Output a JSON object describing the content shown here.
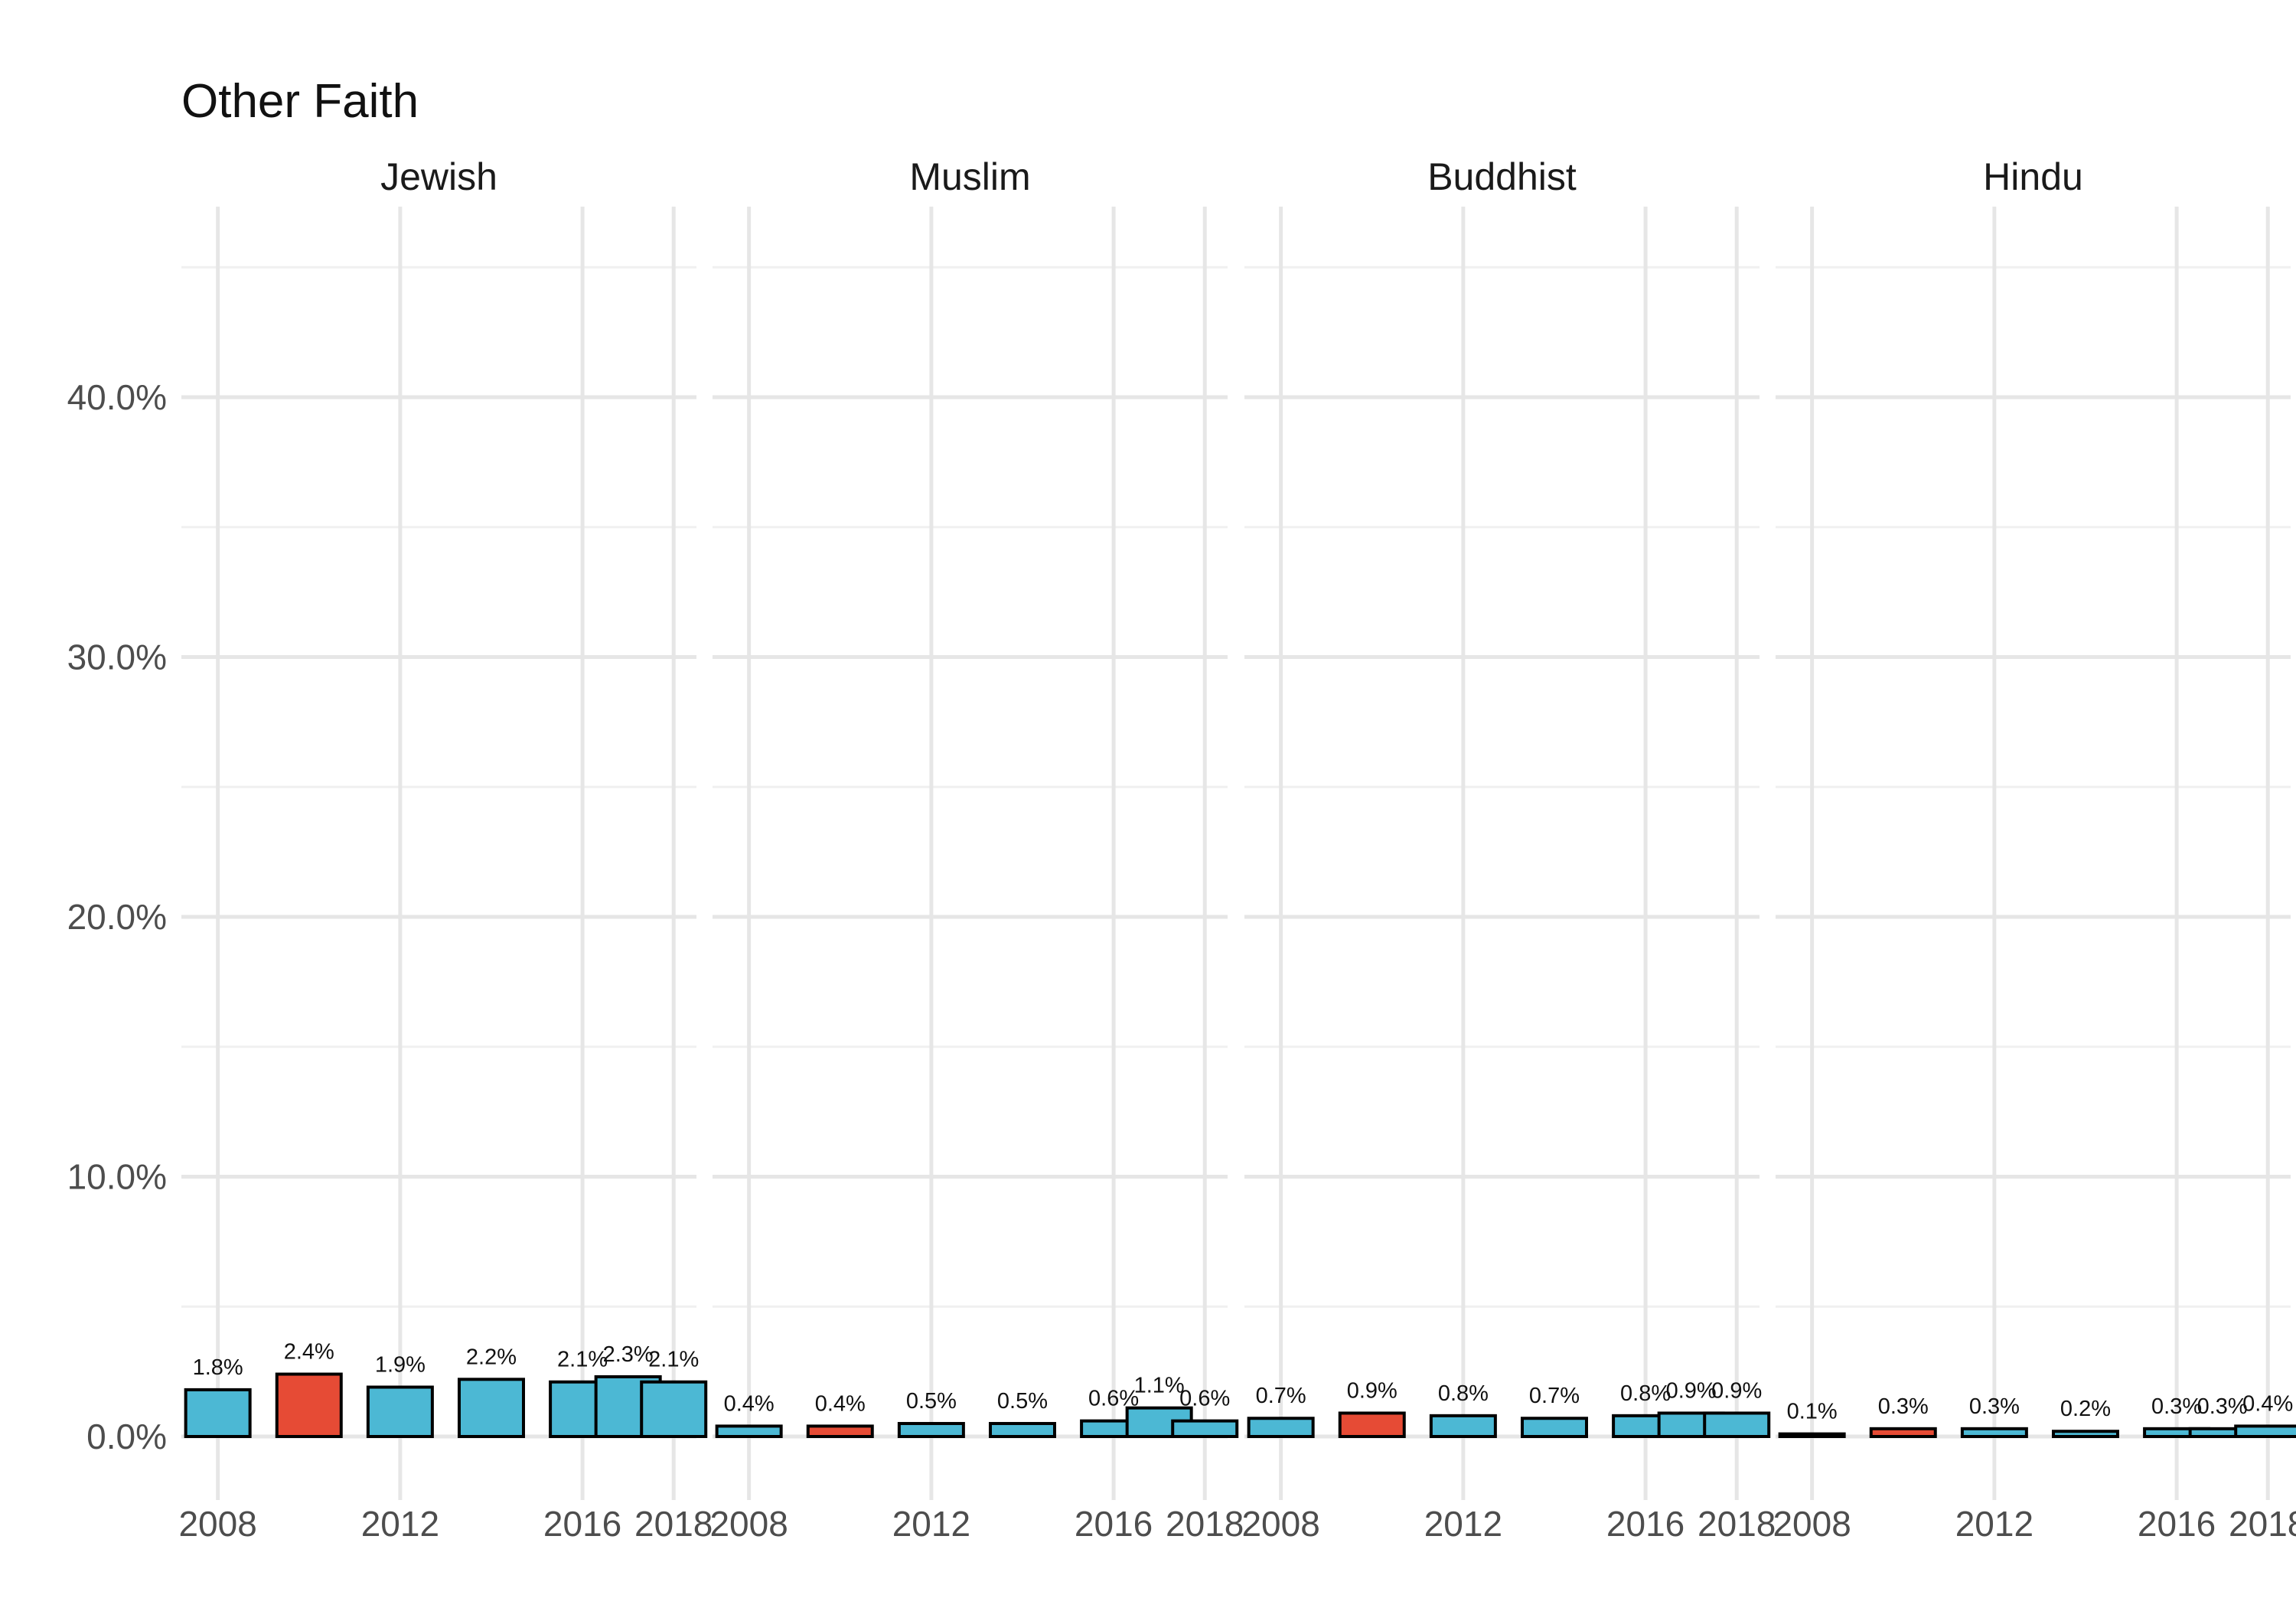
{
  "chart_data": {
    "type": "bar",
    "title": "Other Faith",
    "xlabel": "",
    "ylabel": "",
    "ylim": [
      0,
      45
    ],
    "y_ticks": [
      "0.0%",
      "10.0%",
      "20.0%",
      "30.0%",
      "40.0%"
    ],
    "x_ticks": [
      "2008",
      "2012",
      "2016",
      "2018"
    ],
    "x": [
      2008,
      2010,
      2012,
      2014,
      2016,
      2017,
      2018
    ],
    "colors": {
      "default": "#4cb8d4",
      "highlight": "#e64b35",
      "outline": "#000000"
    },
    "grid": true,
    "panels": [
      {
        "name": "Jewish",
        "values": [
          1.8,
          2.4,
          1.9,
          2.2,
          2.1,
          2.3,
          2.1
        ],
        "labels": [
          "1.8%",
          "2.4%",
          "1.9%",
          "2.2%",
          "2.1%",
          "2.3%",
          "2.1%"
        ],
        "highlight": [
          false,
          true,
          false,
          false,
          false,
          false,
          false
        ]
      },
      {
        "name": "Muslim",
        "values": [
          0.4,
          0.4,
          0.5,
          0.5,
          0.6,
          1.1,
          0.6
        ],
        "labels": [
          "0.4%",
          "0.4%",
          "0.5%",
          "0.5%",
          "0.6%",
          "1.1%",
          "0.6%"
        ],
        "highlight": [
          false,
          true,
          false,
          false,
          false,
          false,
          false
        ]
      },
      {
        "name": "Buddhist",
        "values": [
          0.7,
          0.9,
          0.8,
          0.7,
          0.8,
          0.9,
          0.9
        ],
        "labels": [
          "0.7%",
          "0.9%",
          "0.8%",
          "0.7%",
          "0.8%",
          "0.9%",
          "0.9%"
        ],
        "highlight": [
          false,
          true,
          false,
          false,
          false,
          false,
          false
        ]
      },
      {
        "name": "Hindu",
        "values": [
          0.1,
          0.3,
          0.3,
          0.2,
          0.3,
          0.3,
          0.4
        ],
        "labels": [
          "0.1%",
          "0.3%",
          "0.3%",
          "0.2%",
          "0.3%",
          "0.3%",
          "0.4%"
        ],
        "highlight": [
          false,
          true,
          false,
          false,
          false,
          false,
          false
        ]
      }
    ]
  }
}
